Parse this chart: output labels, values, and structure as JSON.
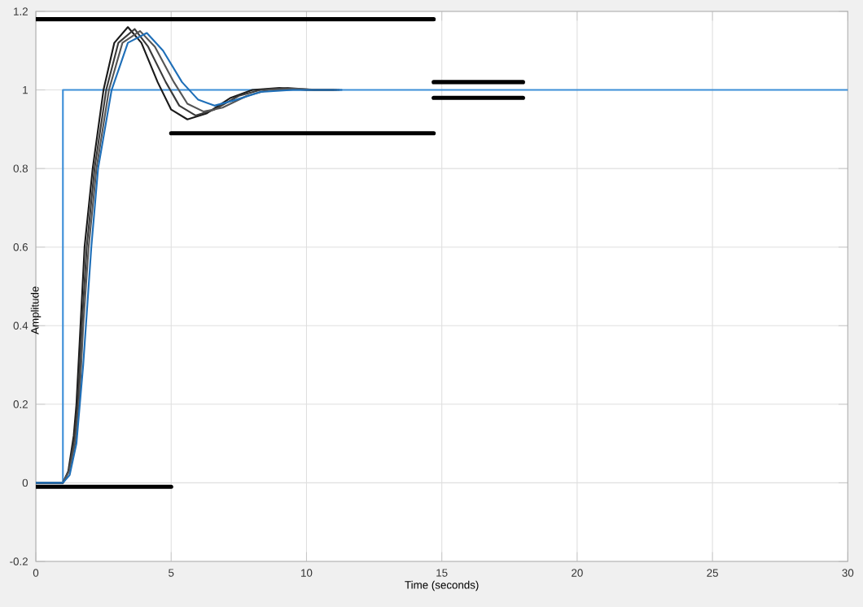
{
  "chart_data": {
    "type": "line",
    "xlabel": "Time (seconds)",
    "ylabel": "Amplitude",
    "xlim": [
      0,
      30
    ],
    "ylim": [
      -0.2,
      1.2
    ],
    "xticks": [
      0,
      5,
      10,
      15,
      20,
      25,
      30
    ],
    "yticks": [
      -0.2,
      0,
      0.2,
      0.4,
      0.6,
      0.8,
      1,
      1.2
    ],
    "grid": true,
    "series": [
      {
        "color": "#000000",
        "x": [
          0,
          14.7
        ],
        "values": [
          1.18,
          1.18
        ]
      },
      {
        "color": "#000000",
        "x": [
          0,
          5
        ],
        "values": [
          -0.01,
          -0.01
        ]
      },
      {
        "color": "#000000",
        "x": [
          5,
          14.7
        ],
        "values": [
          0.89,
          0.89
        ]
      },
      {
        "color": "#000000",
        "x": [
          14.7,
          18
        ],
        "values": [
          1.02,
          1.02
        ]
      },
      {
        "color": "#000000",
        "x": [
          14.7,
          18
        ],
        "values": [
          0.98,
          0.98
        ]
      },
      {
        "color": "#3d8fd8",
        "x": [
          0,
          1,
          1,
          30
        ],
        "values": [
          0,
          0,
          1,
          1
        ]
      },
      {
        "color": "#1a1a1a",
        "x": [
          0,
          1,
          1.2,
          1.4,
          1.5,
          1.65,
          1.8,
          2.1,
          2.5,
          2.9,
          3.4,
          3.9,
          4.5,
          5.0,
          5.6,
          6.3,
          7.2,
          8,
          9,
          10,
          11
        ],
        "values": [
          0,
          0,
          0.03,
          0.12,
          0.2,
          0.4,
          0.6,
          0.8,
          1.0,
          1.12,
          1.16,
          1.12,
          1.02,
          0.95,
          0.925,
          0.94,
          0.98,
          1.0,
          1.005,
          1.0,
          1.0
        ]
      },
      {
        "color": "#3a3a3a",
        "x": [
          0,
          1,
          1.22,
          1.42,
          1.55,
          1.7,
          1.88,
          2.17,
          2.6,
          3.05,
          3.65,
          4.15,
          4.8,
          5.3,
          5.9,
          6.6,
          7.5,
          8.3,
          9.3,
          10.3,
          11.1
        ],
        "values": [
          0,
          0,
          0.03,
          0.11,
          0.2,
          0.4,
          0.6,
          0.8,
          1.0,
          1.12,
          1.155,
          1.11,
          1.02,
          0.96,
          0.935,
          0.95,
          0.985,
          1.0,
          1.005,
          1.0,
          1.0
        ]
      },
      {
        "color": "#555555",
        "x": [
          0,
          1,
          1.23,
          1.45,
          1.6,
          1.75,
          1.95,
          2.24,
          2.7,
          3.2,
          3.85,
          4.4,
          5.1,
          5.6,
          6.2,
          6.9,
          7.8,
          8.6,
          9.6,
          10.5,
          11.2
        ],
        "values": [
          0,
          0,
          0.03,
          0.1,
          0.2,
          0.4,
          0.6,
          0.8,
          1.0,
          1.12,
          1.15,
          1.11,
          1.02,
          0.965,
          0.945,
          0.955,
          0.985,
          1.0,
          1.003,
          1.0,
          1.0
        ]
      },
      {
        "color": "#1f6fb8",
        "x": [
          0,
          1,
          1.25,
          1.5,
          1.75,
          2.05,
          2.3,
          2.8,
          3.4,
          4.1,
          4.7,
          5.4,
          6.0,
          6.6,
          7.4,
          8.3,
          9.5,
          11.3
        ],
        "values": [
          0,
          0,
          0.02,
          0.1,
          0.3,
          0.6,
          0.8,
          1.0,
          1.12,
          1.145,
          1.1,
          1.02,
          0.975,
          0.96,
          0.975,
          0.995,
          1.0,
          1.0
        ]
      }
    ]
  }
}
